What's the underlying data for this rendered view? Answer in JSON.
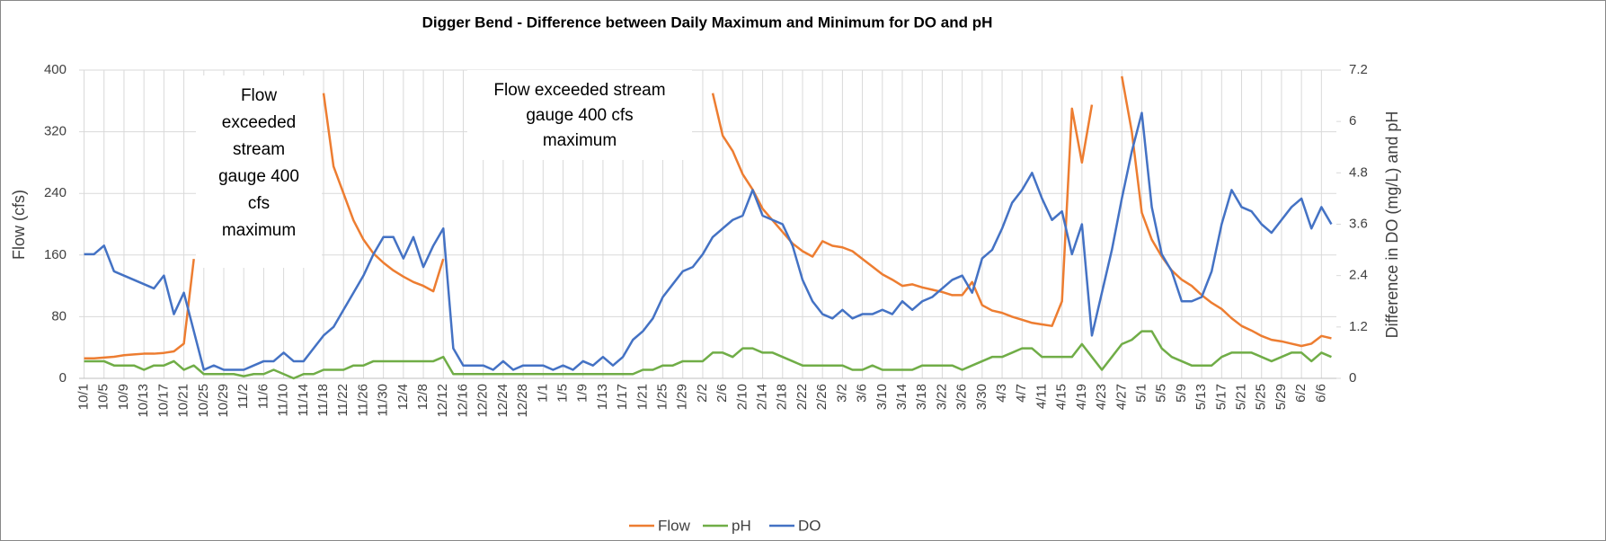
{
  "chart_data": {
    "type": "line",
    "title": "Digger Bend - Difference between Daily Maximum and Minimum for DO and pH",
    "y_label": "Flow (cfs)",
    "y2_label": "Difference in DO (mg/L) and pH",
    "annotations": [
      [
        "Flow",
        "exceeded",
        "stream",
        "gauge 400",
        "cfs",
        "maximum"
      ],
      [
        "Flow exceeded stream",
        "gauge 400 cfs",
        "maximum"
      ]
    ],
    "categories": [
      "10/1",
      null,
      "10/5",
      null,
      "10/9",
      null,
      "10/13",
      null,
      "10/17",
      null,
      "10/21",
      null,
      "10/25",
      null,
      "10/29",
      null,
      "11/2",
      null,
      "11/6",
      null,
      "11/10",
      null,
      "11/14",
      null,
      "11/18",
      null,
      "11/22",
      null,
      "11/26",
      null,
      "11/30",
      null,
      "12/4",
      null,
      "12/8",
      null,
      "12/12",
      null,
      "12/16",
      null,
      "12/20",
      null,
      "12/24",
      null,
      "12/28",
      null,
      "1/1",
      null,
      "1/5",
      null,
      "1/9",
      null,
      "1/13",
      null,
      "1/17",
      null,
      "1/21",
      null,
      "1/25",
      null,
      "1/29",
      null,
      "2/2",
      null,
      "2/6",
      null,
      "2/10",
      null,
      "2/14",
      null,
      "2/18",
      null,
      "2/22",
      null,
      "2/26",
      null,
      "3/2",
      null,
      "3/6",
      null,
      "3/10",
      null,
      "3/14",
      null,
      "3/18",
      null,
      "3/22",
      null,
      "3/26",
      null,
      "3/30",
      null,
      "4/3",
      null,
      "4/7",
      null,
      "4/11",
      null,
      "4/15",
      null,
      "4/19",
      null,
      "4/23",
      null,
      "4/27",
      null,
      "5/1",
      null,
      "5/5",
      null,
      "5/9",
      null,
      "5/13",
      null,
      "5/17",
      null,
      "5/21",
      null,
      "5/25",
      null,
      "5/29",
      null,
      "6/2",
      null,
      "6/6",
      null
    ],
    "series": [
      {
        "name": "Flow",
        "color": "#ed7d31",
        "values": [
          26,
          26,
          27,
          28,
          30,
          31,
          32,
          32,
          33,
          35,
          45,
          155,
          null,
          null,
          null,
          null,
          null,
          null,
          392,
          372,
          null,
          null,
          null,
          null,
          370,
          275,
          240,
          205,
          180,
          162,
          150,
          140,
          132,
          125,
          120,
          113,
          155,
          null,
          null,
          null,
          null,
          null,
          null,
          null,
          null,
          null,
          null,
          null,
          null,
          null,
          null,
          null,
          null,
          null,
          null,
          null,
          null,
          null,
          null,
          null,
          null,
          null,
          null,
          370,
          315,
          295,
          265,
          245,
          220,
          205,
          190,
          175,
          165,
          158,
          178,
          172,
          170,
          165,
          155,
          145,
          135,
          128,
          120,
          122,
          118,
          115,
          112,
          108,
          108,
          125,
          95,
          88,
          85,
          80,
          76,
          72,
          70,
          68,
          100,
          350,
          280,
          355,
          null,
          null,
          392,
          320,
          215,
          180,
          158,
          140,
          128,
          120,
          108,
          98,
          90,
          78,
          68,
          62,
          55,
          50,
          48,
          45,
          42,
          45,
          55,
          52
        ]
      },
      {
        "name": "pH",
        "color": "#70ad47",
        "axis": "y2",
        "values": [
          0.4,
          0.4,
          0.4,
          0.3,
          0.3,
          0.3,
          0.2,
          0.3,
          0.3,
          0.4,
          0.2,
          0.3,
          0.1,
          0.1,
          0.1,
          0.1,
          0.05,
          0.1,
          0.1,
          0.2,
          0.1,
          0,
          0.1,
          0.1,
          0.2,
          0.2,
          0.2,
          0.3,
          0.3,
          0.4,
          0.4,
          0.4,
          0.4,
          0.4,
          0.4,
          0.4,
          0.5,
          0.1,
          0.1,
          0.1,
          0.1,
          0.1,
          0.1,
          0.1,
          0.1,
          0.1,
          0.1,
          0.1,
          0.1,
          0.1,
          0.1,
          0.1,
          0.1,
          0.1,
          0.1,
          0.1,
          0.2,
          0.2,
          0.3,
          0.3,
          0.4,
          0.4,
          0.4,
          0.6,
          0.6,
          0.5,
          0.7,
          0.7,
          0.6,
          0.6,
          0.5,
          0.4,
          0.3,
          0.3,
          0.3,
          0.3,
          0.3,
          0.2,
          0.2,
          0.3,
          0.2,
          0.2,
          0.2,
          0.2,
          0.3,
          0.3,
          0.3,
          0.3,
          0.2,
          0.3,
          0.4,
          0.5,
          0.5,
          0.6,
          0.7,
          0.7,
          0.5,
          0.5,
          0.5,
          0.5,
          0.8,
          0.5,
          0.2,
          0.5,
          0.8,
          0.9,
          1.1,
          1.1,
          0.7,
          0.5,
          0.4,
          0.3,
          0.3,
          0.3,
          0.5,
          0.6,
          0.6,
          0.6,
          0.5,
          0.4,
          0.5,
          0.6,
          0.6,
          0.4,
          0.6,
          0.5
        ]
      },
      {
        "name": "DO",
        "color": "#4472c4",
        "axis": "y2",
        "values": [
          2.9,
          2.9,
          3.1,
          2.5,
          2.4,
          2.3,
          2.2,
          2.1,
          2.4,
          1.5,
          2.0,
          1.1,
          0.2,
          0.3,
          0.2,
          0.2,
          0.2,
          0.3,
          0.4,
          0.4,
          0.6,
          0.4,
          0.4,
          0.7,
          1.0,
          1.2,
          1.6,
          2.0,
          2.4,
          2.9,
          3.3,
          3.3,
          2.8,
          3.3,
          2.6,
          3.1,
          3.5,
          0.7,
          0.3,
          0.3,
          0.3,
          0.2,
          0.4,
          0.2,
          0.3,
          0.3,
          0.3,
          0.2,
          0.3,
          0.2,
          0.4,
          0.3,
          0.5,
          0.3,
          0.5,
          0.9,
          1.1,
          1.4,
          1.9,
          2.2,
          2.5,
          2.6,
          2.9,
          3.3,
          3.5,
          3.7,
          3.8,
          4.4,
          3.8,
          3.7,
          3.6,
          3.1,
          2.3,
          1.8,
          1.5,
          1.4,
          1.6,
          1.4,
          1.5,
          1.5,
          1.6,
          1.5,
          1.8,
          1.6,
          1.8,
          1.9,
          2.1,
          2.3,
          2.4,
          2.0,
          2.8,
          3.0,
          3.5,
          4.1,
          4.4,
          4.8,
          4.2,
          3.7,
          3.9,
          2.9,
          3.6,
          1.0,
          2.0,
          3.0,
          4.2,
          5.3,
          6.2,
          4.0,
          2.9,
          2.5,
          1.8,
          1.8,
          1.9,
          2.5,
          3.6,
          4.4,
          4.0,
          3.9,
          3.6,
          3.4,
          3.7,
          4.0,
          4.2,
          3.5,
          4.0,
          3.6
        ]
      }
    ],
    "ylim": [
      0,
      400
    ],
    "yticks": [
      0,
      80,
      160,
      240,
      320,
      400
    ],
    "y2lim": [
      0,
      7.2
    ],
    "y2ticks": [
      0,
      1.2,
      2.4,
      3.6,
      4.8,
      6,
      7.2
    ],
    "grid": true,
    "legend": "bottom"
  }
}
